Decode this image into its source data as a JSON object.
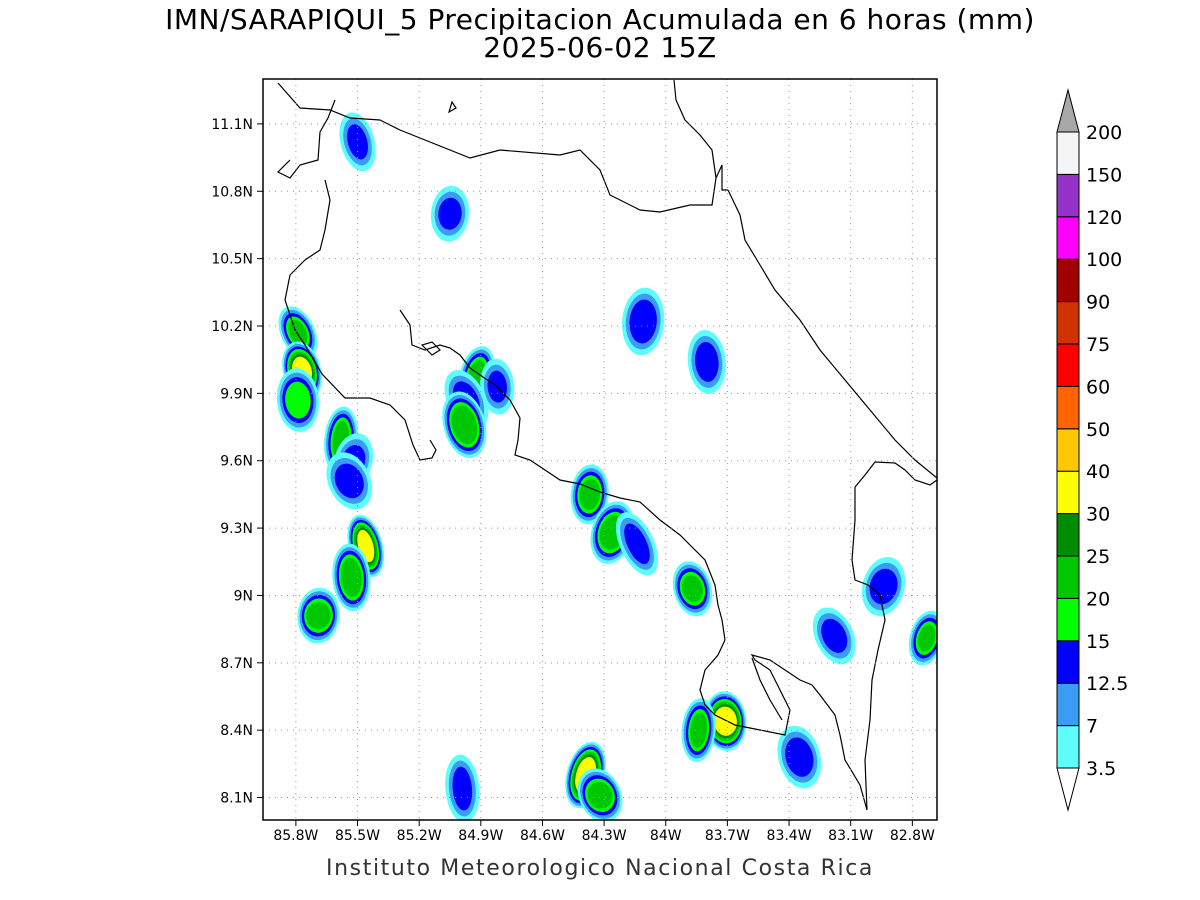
{
  "title": {
    "line1": "IMN/SARAPIQUI_5 Precipitacion Acumulada en 6 horas (mm)",
    "line2": "2025-06-02 15Z"
  },
  "footer": "Instituto Meteorologico Nacional Costa Rica",
  "axes": {
    "lon_range": [
      -85.96,
      -82.68
    ],
    "lat_range": [
      8.0,
      11.3
    ],
    "x_ticks": [
      {
        "value": -85.8,
        "label": "85.8W"
      },
      {
        "value": -85.5,
        "label": "85.5W"
      },
      {
        "value": -85.2,
        "label": "85.2W"
      },
      {
        "value": -84.9,
        "label": "84.9W"
      },
      {
        "value": -84.6,
        "label": "84.6W"
      },
      {
        "value": -84.3,
        "label": "84.3W"
      },
      {
        "value": -84.0,
        "label": "84W"
      },
      {
        "value": -83.7,
        "label": "83.7W"
      },
      {
        "value": -83.4,
        "label": "83.4W"
      },
      {
        "value": -83.1,
        "label": "83.1W"
      },
      {
        "value": -82.8,
        "label": "82.8W"
      }
    ],
    "y_ticks": [
      {
        "value": 8.1,
        "label": "8.1N"
      },
      {
        "value": 8.4,
        "label": "8.4N"
      },
      {
        "value": 8.7,
        "label": "8.7N"
      },
      {
        "value": 9.0,
        "label": "9N"
      },
      {
        "value": 9.3,
        "label": "9.3N"
      },
      {
        "value": 9.6,
        "label": "9.6N"
      },
      {
        "value": 9.9,
        "label": "9.9N"
      },
      {
        "value": 10.2,
        "label": "10.2N"
      },
      {
        "value": 10.5,
        "label": "10.5N"
      },
      {
        "value": 10.8,
        "label": "10.8N"
      },
      {
        "value": 11.1,
        "label": "11.1N"
      }
    ],
    "grid": "dotted"
  },
  "colorbar": {
    "levels": [
      {
        "label": "3.5",
        "color": "#5ffcfc"
      },
      {
        "label": "7",
        "color": "#3a9cf4"
      },
      {
        "label": "12.5",
        "color": "#0000ff"
      },
      {
        "label": "15",
        "color": "#00ff00"
      },
      {
        "label": "20",
        "color": "#00c800"
      },
      {
        "label": "25",
        "color": "#008c00"
      },
      {
        "label": "30",
        "color": "#ffff00"
      },
      {
        "label": "40",
        "color": "#ffc800"
      },
      {
        "label": "50",
        "color": "#ff6400"
      },
      {
        "label": "60",
        "color": "#ff0000"
      },
      {
        "label": "75",
        "color": "#d23200"
      },
      {
        "label": "90",
        "color": "#a00000"
      },
      {
        "label": "100",
        "color": "#ff00ff"
      },
      {
        "label": "120",
        "color": "#9632c8"
      },
      {
        "label": "150",
        "color": "#f5f5f5"
      },
      {
        "label": "200",
        "color": "#a8a8a8"
      }
    ]
  },
  "rain_cells": [
    {
      "lon": -85.79,
      "lat": 10.17,
      "max": 20
    },
    {
      "lon": -85.77,
      "lat": 10.0,
      "max": 30
    },
    {
      "lon": -85.79,
      "lat": 9.87,
      "max": 15
    },
    {
      "lon": -85.58,
      "lat": 9.69,
      "max": 20
    },
    {
      "lon": -85.52,
      "lat": 9.6,
      "max": 12.5
    },
    {
      "lon": -85.54,
      "lat": 9.51,
      "max": 12.5
    },
    {
      "lon": -85.46,
      "lat": 9.22,
      "max": 30
    },
    {
      "lon": -85.53,
      "lat": 9.08,
      "max": 20
    },
    {
      "lon": -85.69,
      "lat": 8.91,
      "max": 20
    },
    {
      "lon": -84.92,
      "lat": 9.98,
      "max": 20
    },
    {
      "lon": -84.97,
      "lat": 9.87,
      "max": 12.5
    },
    {
      "lon": -84.98,
      "lat": 9.76,
      "max": 20
    },
    {
      "lon": -84.82,
      "lat": 9.93,
      "max": 12.5
    },
    {
      "lon": -84.37,
      "lat": 9.45,
      "max": 20
    },
    {
      "lon": -84.26,
      "lat": 9.28,
      "max": 20
    },
    {
      "lon": -84.14,
      "lat": 9.23,
      "max": 12.5
    },
    {
      "lon": -83.87,
      "lat": 9.03,
      "max": 20
    },
    {
      "lon": -83.71,
      "lat": 8.44,
      "max": 30
    },
    {
      "lon": -83.84,
      "lat": 8.4,
      "max": 20
    },
    {
      "lon": -84.39,
      "lat": 8.2,
      "max": 30
    },
    {
      "lon": -84.32,
      "lat": 8.11,
      "max": 20
    },
    {
      "lon": -85.5,
      "lat": 11.02,
      "max": 12.5
    },
    {
      "lon": -83.8,
      "lat": 10.04,
      "max": 12.5
    },
    {
      "lon": -84.11,
      "lat": 10.22,
      "max": 12.5
    },
    {
      "lon": -82.73,
      "lat": 8.81,
      "max": 20
    },
    {
      "lon": -83.18,
      "lat": 8.82,
      "max": 12.5
    },
    {
      "lon": -83.35,
      "lat": 8.28,
      "max": 12.5
    },
    {
      "lon": -84.99,
      "lat": 8.14,
      "max": 12.5
    },
    {
      "lon": -85.05,
      "lat": 10.7,
      "max": 12.5
    },
    {
      "lon": -82.94,
      "lat": 9.04,
      "max": 12.5
    }
  ]
}
